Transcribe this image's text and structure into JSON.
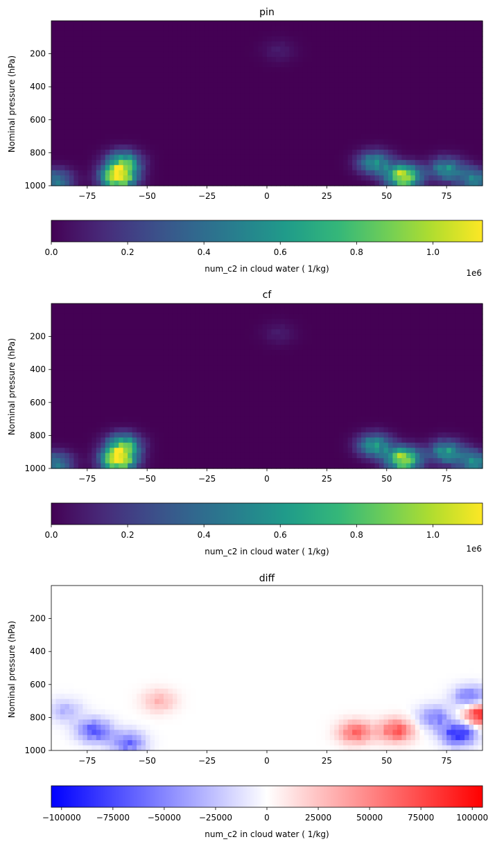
{
  "chart_data": [
    {
      "type": "heatmap",
      "title": "pin",
      "ylabel": "Nominal pressure (hPa)",
      "xlim": [
        -90,
        90
      ],
      "ylim": [
        1000,
        0
      ],
      "xticks": [
        -75,
        -50,
        -25,
        0,
        25,
        50,
        75
      ],
      "yticks": [
        200,
        400,
        600,
        800,
        1000
      ],
      "colormap": "viridis",
      "colorbar": {
        "label": "num_c2 in cloud water ( 1/kg)",
        "range": [
          0,
          1130000
        ],
        "ticks": [
          "0.0",
          "0.2",
          "0.4",
          "0.6",
          "0.8",
          "1.0"
        ],
        "tick_values": [
          0,
          200000,
          400000,
          600000,
          800000,
          1000000
        ],
        "offset_text": "1e6"
      },
      "features": [
        {
          "lat": -62,
          "pressure": 950,
          "value": 1100000
        },
        {
          "lat": -60,
          "pressure": 860,
          "value": 700000
        },
        {
          "lat": -88,
          "pressure": 970,
          "value": 450000
        },
        {
          "lat": 57,
          "pressure": 945,
          "value": 1100000
        },
        {
          "lat": 45,
          "pressure": 860,
          "value": 550000
        },
        {
          "lat": 75,
          "pressure": 900,
          "value": 550000
        },
        {
          "lat": 87,
          "pressure": 965,
          "value": 500000
        },
        {
          "lat": 5,
          "pressure": 180,
          "value": 80000
        }
      ]
    },
    {
      "type": "heatmap",
      "title": "cf",
      "ylabel": "Nominal pressure (hPa)",
      "xlim": [
        -90,
        90
      ],
      "ylim": [
        1000,
        0
      ],
      "xticks": [
        -75,
        -50,
        -25,
        0,
        25,
        50,
        75
      ],
      "yticks": [
        200,
        400,
        600,
        800,
        1000
      ],
      "colormap": "viridis",
      "colorbar": {
        "label": "num_c2 in cloud water ( 1/kg)",
        "range": [
          0,
          1130000
        ],
        "ticks": [
          "0.0",
          "0.2",
          "0.4",
          "0.6",
          "0.8",
          "1.0"
        ],
        "tick_values": [
          0,
          200000,
          400000,
          600000,
          800000,
          1000000
        ],
        "offset_text": "1e6"
      },
      "features": [
        {
          "lat": -62,
          "pressure": 950,
          "value": 1100000
        },
        {
          "lat": -60,
          "pressure": 860,
          "value": 720000
        },
        {
          "lat": -88,
          "pressure": 970,
          "value": 450000
        },
        {
          "lat": 57,
          "pressure": 945,
          "value": 1050000
        },
        {
          "lat": 45,
          "pressure": 860,
          "value": 600000
        },
        {
          "lat": 75,
          "pressure": 900,
          "value": 600000
        },
        {
          "lat": 87,
          "pressure": 965,
          "value": 550000
        },
        {
          "lat": 5,
          "pressure": 180,
          "value": 80000
        }
      ]
    },
    {
      "type": "heatmap",
      "title": "diff",
      "ylabel": "Nominal pressure (hPa)",
      "xlim": [
        -90,
        90
      ],
      "ylim": [
        1000,
        0
      ],
      "xticks": [
        -75,
        -50,
        -25,
        0,
        25,
        50,
        75
      ],
      "yticks": [
        200,
        400,
        600,
        800,
        1000
      ],
      "colormap": "bwr",
      "colorbar": {
        "label": "num_c2 in cloud water ( 1/kg)",
        "range": [
          -105000,
          105000
        ],
        "ticks": [
          "−100000",
          "−75000",
          "−50000",
          "−25000",
          "0",
          "25000",
          "50000",
          "75000",
          "100000"
        ],
        "tick_values": [
          -100000,
          -75000,
          -50000,
          -25000,
          0,
          25000,
          50000,
          75000,
          100000
        ]
      },
      "features": [
        {
          "lat": -72,
          "pressure": 880,
          "value": -70000
        },
        {
          "lat": -58,
          "pressure": 955,
          "value": -60000
        },
        {
          "lat": -84,
          "pressure": 760,
          "value": -30000
        },
        {
          "lat": 80,
          "pressure": 900,
          "value": -90000
        },
        {
          "lat": 85,
          "pressure": 680,
          "value": -60000
        },
        {
          "lat": 70,
          "pressure": 800,
          "value": -50000
        },
        {
          "lat": 37,
          "pressure": 890,
          "value": 60000
        },
        {
          "lat": 54,
          "pressure": 880,
          "value": 70000
        },
        {
          "lat": 89,
          "pressure": 780,
          "value": 90000
        },
        {
          "lat": -45,
          "pressure": 700,
          "value": 30000
        }
      ]
    }
  ]
}
